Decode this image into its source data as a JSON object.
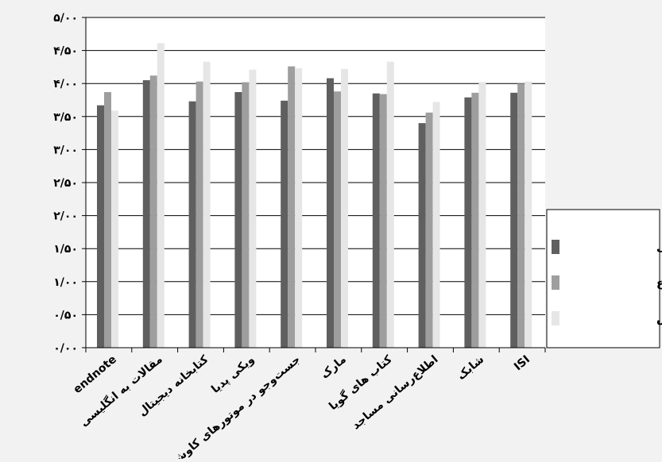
{
  "chart_data": {
    "type": "bar",
    "categories": [
      "endnote",
      "مقالات به انگلیسی",
      "کتابخانه دیجیتال",
      "ویکی پدیا",
      "جست‌وجو در موتورهای کاوش",
      "مارک",
      "کتاب های گویا",
      "اطلاع‌رسانی مساجد",
      "شابک",
      "ISI"
    ],
    "series": [
      {
        "name": "نحوه اطلاع‌رسانی",
        "color": "#5f5f5f",
        "values": [
          3.67,
          4.05,
          3.73,
          3.87,
          3.74,
          4.08,
          3.85,
          3.4,
          3.79,
          3.86
        ]
      },
      {
        "name": "موضوع",
        "color": "#9e9e9e",
        "values": [
          3.87,
          4.12,
          4.03,
          4.02,
          4.26,
          3.88,
          3.84,
          3.56,
          3.86,
          4.0
        ]
      },
      {
        "name": "شیوه تدریس",
        "color": "#e6e6e6",
        "values": [
          3.59,
          4.61,
          4.33,
          4.21,
          4.23,
          4.22,
          4.33,
          3.72,
          4.02,
          4.03
        ]
      }
    ],
    "y_tick_labels": [
      "۰/۰۰",
      "۰/۵۰",
      "۱/۰۰",
      "۱/۵۰",
      "۲/۰۰",
      "۲/۵۰",
      "۳/۰۰",
      "۳/۵۰",
      "۴/۰۰",
      "۴/۵۰",
      "۵/۰۰"
    ],
    "ylim": [
      0,
      5
    ],
    "grid": true,
    "legend_position": "right"
  }
}
